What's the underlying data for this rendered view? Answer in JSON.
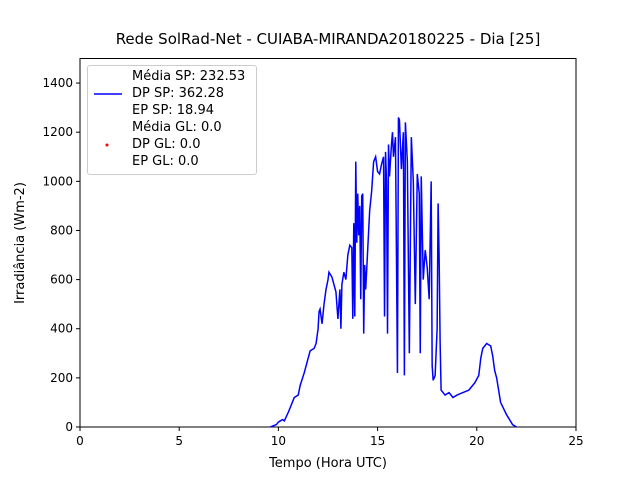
{
  "chart_data": {
    "type": "line",
    "title": "Rede SolRad-Net - CUIABA-MIRANDA20180225 - Dia [25]",
    "xlabel": "Tempo (Hora UTC)",
    "ylabel": "Irradiância (Wm-2)",
    "xlim": [
      0,
      25
    ],
    "xticks": [
      0,
      5,
      10,
      15,
      20,
      25
    ],
    "ylim": [
      0,
      1500
    ],
    "yticks": [
      0,
      200,
      400,
      600,
      800,
      1000,
      1200,
      1400
    ],
    "grid": false,
    "legend": "upper left",
    "series": [
      {
        "name": "Média SP: 232.53\nDP SP: 362.28\nEP SP: 18.94",
        "color": "#0000ff",
        "marker": "line",
        "x": [
          9.6,
          9.9,
          10.0,
          10.2,
          10.3,
          10.5,
          10.7,
          10.8,
          11.0,
          11.1,
          11.3,
          11.5,
          11.6,
          11.8,
          11.9,
          12.0,
          12.05,
          12.1,
          12.2,
          12.3,
          12.4,
          12.5,
          12.55,
          12.7,
          12.8,
          12.9,
          13.0,
          13.1,
          13.15,
          13.2,
          13.3,
          13.4,
          13.5,
          13.6,
          13.7,
          13.75,
          13.8,
          13.85,
          13.9,
          13.95,
          14.0,
          14.05,
          14.1,
          14.15,
          14.2,
          14.25,
          14.3,
          14.35,
          14.4,
          14.5,
          14.6,
          14.7,
          14.8,
          14.9,
          15.0,
          15.1,
          15.2,
          15.3,
          15.35,
          15.4,
          15.45,
          15.5,
          15.55,
          15.6,
          15.7,
          15.75,
          15.8,
          15.9,
          16.0,
          16.05,
          16.1,
          16.2,
          16.3,
          16.35,
          16.4,
          16.5,
          16.6,
          16.7,
          16.8,
          16.9,
          17.0,
          17.1,
          17.15,
          17.2,
          17.3,
          17.4,
          17.5,
          17.6,
          17.7,
          17.75,
          17.8,
          17.9,
          18.0,
          18.05,
          18.1,
          18.15,
          18.2,
          18.4,
          18.6,
          18.8,
          19.0,
          19.3,
          19.6,
          19.9,
          20.1,
          20.2,
          20.3,
          20.5,
          20.7,
          20.8,
          20.9,
          21.0,
          21.2,
          21.5,
          21.8,
          22.0
        ],
        "values": [
          0,
          10,
          20,
          30,
          25,
          60,
          100,
          120,
          130,
          170,
          220,
          280,
          310,
          320,
          340,
          400,
          470,
          480,
          420,
          500,
          560,
          600,
          630,
          610,
          580,
          550,
          440,
          560,
          400,
          580,
          630,
          600,
          700,
          740,
          730,
          440,
          830,
          450,
          1080,
          750,
          950,
          780,
          900,
          520,
          940,
          950,
          380,
          660,
          560,
          720,
          880,
          960,
          1080,
          1100,
          1040,
          1030,
          1070,
          1100,
          450,
          1120,
          1000,
          380,
          1150,
          1020,
          1150,
          1200,
          1100,
          1180,
          220,
          1260,
          1250,
          1050,
          1200,
          210,
          1240,
          1080,
          300,
          1180,
          1000,
          500,
          1030,
          950,
          300,
          1020,
          600,
          720,
          650,
          520,
          1000,
          250,
          190,
          210,
          400,
          910,
          700,
          350,
          150,
          130,
          140,
          120,
          130,
          140,
          150,
          180,
          210,
          280,
          320,
          340,
          330,
          290,
          230,
          200,
          100,
          50,
          10,
          0
        ]
      },
      {
        "name": "Média GL: 0.0\nDP GL: 0.0\nEP GL: 0.0",
        "color": "#ff0000",
        "marker": "dot",
        "x": [],
        "values": []
      }
    ]
  }
}
